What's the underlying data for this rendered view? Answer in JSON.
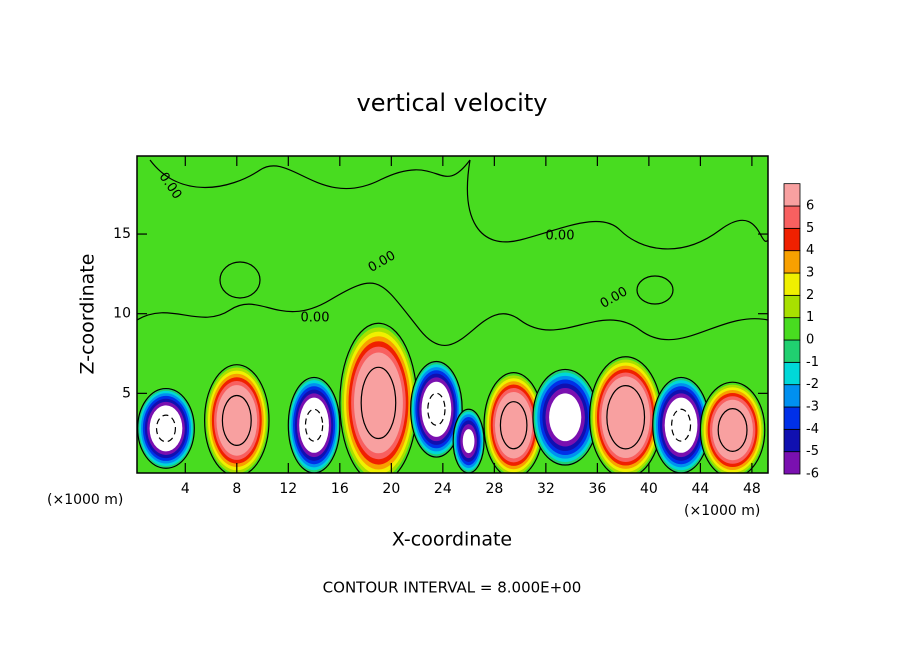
{
  "chart_data": {
    "type": "contour",
    "title": "vertical velocity",
    "xlabel": "X-coordinate",
    "ylabel": "Z-coordinate",
    "xunit": "(×1000 m)",
    "xunit2": "(×1000 m)",
    "footer": "CONTOUR INTERVAL = 8.000E+00",
    "contour_interval": 8,
    "xlim": [
      0.25,
      49.25
    ],
    "ylim": [
      0,
      19.9
    ],
    "xticks": [
      4,
      8,
      12,
      16,
      20,
      24,
      28,
      32,
      36,
      40,
      44,
      48
    ],
    "yticks": [
      5,
      10,
      15
    ],
    "levels": [
      -6,
      -5,
      -4,
      -3,
      -2,
      -1,
      0,
      1,
      2,
      3,
      4,
      5,
      6
    ],
    "colors": [
      "#7a10b0",
      "#1010b0",
      "#0030e8",
      "#0090f0",
      "#00d8d8",
      "#20d070",
      "#48dc20",
      "#a8e000",
      "#f0f000",
      "#f8a000",
      "#f02000",
      "#f86060",
      "#f8a0a0"
    ],
    "over_color": "#ffffff",
    "under_color": "#ffffff",
    "cells": [
      {
        "x": 2.5,
        "z": 2.8,
        "dx": 2.2,
        "dz": 2.5,
        "value": -9
      },
      {
        "x": 8,
        "z": 3.3,
        "dx": 2.5,
        "dz": 3.5,
        "value": 10
      },
      {
        "x": 14,
        "z": 3,
        "dx": 2,
        "dz": 3,
        "value": -9
      },
      {
        "x": 19,
        "z": 4.4,
        "dx": 3,
        "dz": 5,
        "value": 10
      },
      {
        "x": 23.5,
        "z": 4,
        "dx": 2,
        "dz": 3,
        "value": -9
      },
      {
        "x": 26,
        "z": 2,
        "dx": 1.2,
        "dz": 2,
        "value": -7
      },
      {
        "x": 29.5,
        "z": 3,
        "dx": 2.3,
        "dz": 3.3,
        "value": 10
      },
      {
        "x": 33.5,
        "z": 3.5,
        "dx": 2.5,
        "dz": 3,
        "value": -8
      },
      {
        "x": 38.2,
        "z": 3.5,
        "dx": 2.8,
        "dz": 3.8,
        "value": 11
      },
      {
        "x": 42.5,
        "z": 3,
        "dx": 2.2,
        "dz": 3,
        "value": -9
      },
      {
        "x": 46.5,
        "z": 2.7,
        "dx": 2.5,
        "dz": 3,
        "value": 10
      }
    ],
    "contour_labels": [
      "0.00",
      "0.00",
      "0.00",
      "0.00",
      "0.00"
    ]
  }
}
